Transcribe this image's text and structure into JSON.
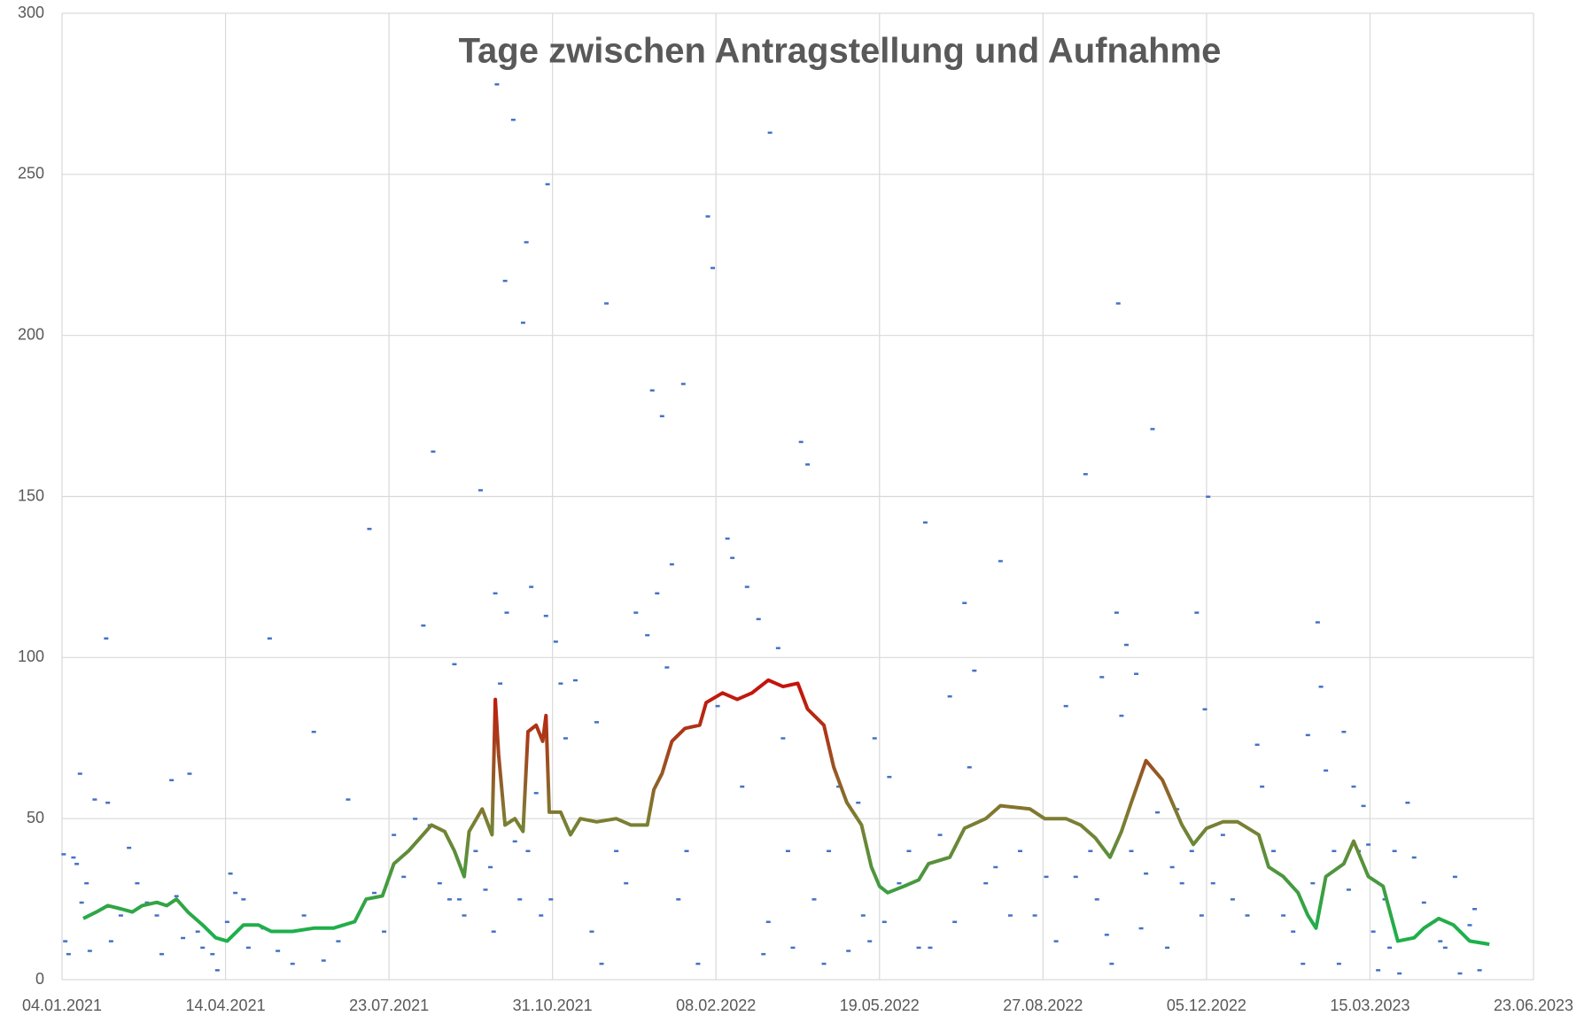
{
  "chart_data": {
    "type": "scatter",
    "title": "Tage zwischen Antragstellung und Aufnahme",
    "xlim": [
      44200,
      45100
    ],
    "xticks": [
      {
        "value": 44200,
        "label": "04.01.2021"
      },
      {
        "value": 44300,
        "label": "14.04.2021"
      },
      {
        "value": 44400,
        "label": "23.07.2021"
      },
      {
        "value": 44500,
        "label": "31.10.2021"
      },
      {
        "value": 44600,
        "label": "08.02.2022"
      },
      {
        "value": 44700,
        "label": "19.05.2022"
      },
      {
        "value": 44800,
        "label": "27.08.2022"
      },
      {
        "value": 44900,
        "label": "05.12.2022"
      },
      {
        "value": 45000,
        "label": "15.03.2023"
      },
      {
        "value": 45100,
        "label": "23.06.2023"
      }
    ],
    "ylim": [
      0,
      300
    ],
    "yticks": [
      0,
      50,
      100,
      150,
      200,
      250,
      300
    ],
    "grid": true,
    "series": [
      {
        "type": "scatter",
        "color": "#4472c4",
        "x": [
          44201,
          44202,
          44204,
          44207,
          44209,
          44211,
          44212,
          44215,
          44217,
          44220,
          44227,
          44228,
          44230,
          44236,
          44241,
          44246,
          44252,
          44258,
          44261,
          44267,
          44270,
          44274,
          44278,
          44283,
          44286,
          44292,
          44295,
          44301,
          44303,
          44306,
          44311,
          44314,
          44323,
          44327,
          44332,
          44341,
          44348,
          44354,
          44360,
          44369,
          44375,
          44388,
          44391,
          44397,
          44403,
          44409,
          44416,
          44421,
          44425,
          44427,
          44431,
          44437,
          44440,
          44443,
          44446,
          44453,
          44456,
          44459,
          44462,
          44464,
          44465,
          44466,
          44468,
          44471,
          44472,
          44476,
          44477,
          44480,
          44482,
          44484,
          44485,
          44487,
          44490,
          44493,
          44496,
          44497,
          44499,
          44502,
          44505,
          44508,
          44514,
          44518,
          44524,
          44527,
          44530,
          44533,
          44539,
          44545,
          44551,
          44558,
          44561,
          44564,
          44567,
          44570,
          44573,
          44577,
          44580,
          44582,
          44589,
          44595,
          44598,
          44601,
          44607,
          44610,
          44616,
          44619,
          44626,
          44629,
          44632,
          44633,
          44638,
          44641,
          44644,
          44647,
          44652,
          44656,
          44660,
          44666,
          44669,
          44675,
          44681,
          44687,
          44690,
          44694,
          44697,
          44703,
          44706,
          44712,
          44718,
          44724,
          44728,
          44731,
          44737,
          44743,
          44746,
          44752,
          44755,
          44758,
          44765,
          44771,
          44774,
          44780,
          44786,
          44795,
          44802,
          44808,
          44814,
          44820,
          44826,
          44829,
          44833,
          44836,
          44839,
          44842,
          44845,
          44846,
          44848,
          44851,
          44854,
          44857,
          44860,
          44863,
          44867,
          44870,
          44876,
          44879,
          44882,
          44885,
          44891,
          44894,
          44897,
          44899,
          44901,
          44904,
          44910,
          44916,
          44925,
          44931,
          44934,
          44941,
          44947,
          44953,
          44959,
          44962,
          44965,
          44968,
          44970,
          44973,
          44978,
          44981,
          44984,
          44987,
          44990,
          44993,
          44996,
          44999,
          45002,
          45005,
          45009,
          45012,
          45015,
          45018,
          45023,
          45027,
          45033,
          45039,
          45043,
          45046,
          45052,
          45055,
          45061,
          45064,
          45067
        ],
        "values": [
          39,
          12,
          8,
          38,
          36,
          64,
          24,
          30,
          9,
          56,
          106,
          55,
          12,
          20,
          41,
          30,
          24,
          20,
          8,
          62,
          26,
          13,
          64,
          15,
          10,
          8,
          3,
          18,
          33,
          27,
          25,
          10,
          16,
          106,
          9,
          5,
          20,
          77,
          6,
          12,
          56,
          140,
          27,
          15,
          45,
          32,
          50,
          110,
          48,
          164,
          30,
          25,
          98,
          25,
          20,
          40,
          152,
          28,
          35,
          15,
          120,
          278,
          92,
          217,
          114,
          267,
          43,
          25,
          204,
          229,
          40,
          122,
          58,
          20,
          113,
          247,
          25,
          105,
          92,
          75,
          93,
          50,
          15,
          80,
          5,
          210,
          40,
          30,
          114,
          107,
          183,
          120,
          175,
          97,
          129,
          25,
          185,
          40,
          5,
          237,
          221,
          85,
          137,
          131,
          60,
          122,
          112,
          8,
          18,
          263,
          103,
          75,
          40,
          10,
          167,
          160,
          25,
          5,
          40,
          60,
          9,
          55,
          20,
          12,
          75,
          18,
          63,
          30,
          40,
          10,
          142,
          10,
          45,
          88,
          18,
          117,
          66,
          96,
          30,
          35,
          130,
          20,
          40,
          20,
          32,
          12,
          85,
          32,
          157,
          40,
          25,
          94,
          14,
          5,
          114,
          210,
          82,
          104,
          40,
          95,
          16,
          33,
          171,
          52,
          10,
          35,
          53,
          30,
          40,
          114,
          20,
          84,
          150,
          30,
          45,
          25,
          20,
          73,
          60,
          40,
          20,
          15,
          5,
          76,
          30,
          111,
          91,
          65,
          40,
          5,
          77,
          28,
          60,
          40,
          54,
          42,
          15,
          3,
          25,
          10,
          40,
          2,
          55,
          38,
          24,
          18,
          12,
          10,
          32,
          2,
          17,
          22,
          3
        ]
      },
      {
        "type": "line",
        "color_scale": [
          {
            "value": 15,
            "color": "#1db04b"
          },
          {
            "value": 50,
            "color": "#7d7d32"
          },
          {
            "value": 90,
            "color": "#c4140c"
          }
        ],
        "x": [
          44213,
          44221,
          44228,
          44236,
          44243,
          44249,
          44258,
          44264,
          44270,
          44277,
          44286,
          44294,
          44301,
          44311,
          44320,
          44328,
          44341,
          44354,
          44366,
          44379,
          44386,
          44396,
          44403,
          44412,
          44419,
          44426,
          44434,
          44440,
          44446,
          44449,
          44457,
          44463,
          44465,
          44467,
          44471,
          44477,
          44482,
          44485,
          44490,
          44494,
          44496,
          44498,
          44505,
          44511,
          44517,
          44527,
          44539,
          44548,
          44558,
          44562,
          44567,
          44573,
          44581,
          44590,
          44594,
          44604,
          44613,
          44622,
          44632,
          44641,
          44650,
          44656,
          44666,
          44672,
          44680,
          44689,
          44695,
          44700,
          44705,
          44715,
          44724,
          44730,
          44743,
          44752,
          44765,
          44774,
          44792,
          44801,
          44814,
          44823,
          44832,
          44841,
          44848,
          44854,
          44863,
          44873,
          44885,
          44892,
          44900,
          44910,
          44919,
          44932,
          44938,
          44947,
          44956,
          44962,
          44967,
          44973,
          44984,
          44990,
          44999,
          45008,
          45017,
          45027,
          45033,
          45042,
          45051,
          45061,
          45073
        ],
        "values": [
          19,
          21,
          23,
          22,
          21,
          23,
          24,
          23,
          25,
          21,
          17,
          13,
          12,
          17,
          17,
          15,
          15,
          16,
          16,
          18,
          25,
          26,
          36,
          40,
          44,
          48,
          46,
          40,
          32,
          46,
          53,
          45,
          87,
          70,
          48,
          50,
          46,
          77,
          79,
          74,
          82,
          52,
          52,
          45,
          50,
          49,
          50,
          48,
          48,
          59,
          64,
          74,
          78,
          79,
          86,
          89,
          87,
          89,
          93,
          91,
          92,
          84,
          79,
          66,
          55,
          48,
          35,
          29,
          27,
          29,
          31,
          36,
          38,
          47,
          50,
          54,
          53,
          50,
          50,
          48,
          44,
          38,
          46,
          55,
          68,
          62,
          48,
          42,
          47,
          49,
          49,
          45,
          35,
          32,
          27,
          20,
          16,
          32,
          36,
          43,
          32,
          29,
          12,
          13,
          16,
          19,
          17,
          12,
          11
        ]
      }
    ]
  }
}
